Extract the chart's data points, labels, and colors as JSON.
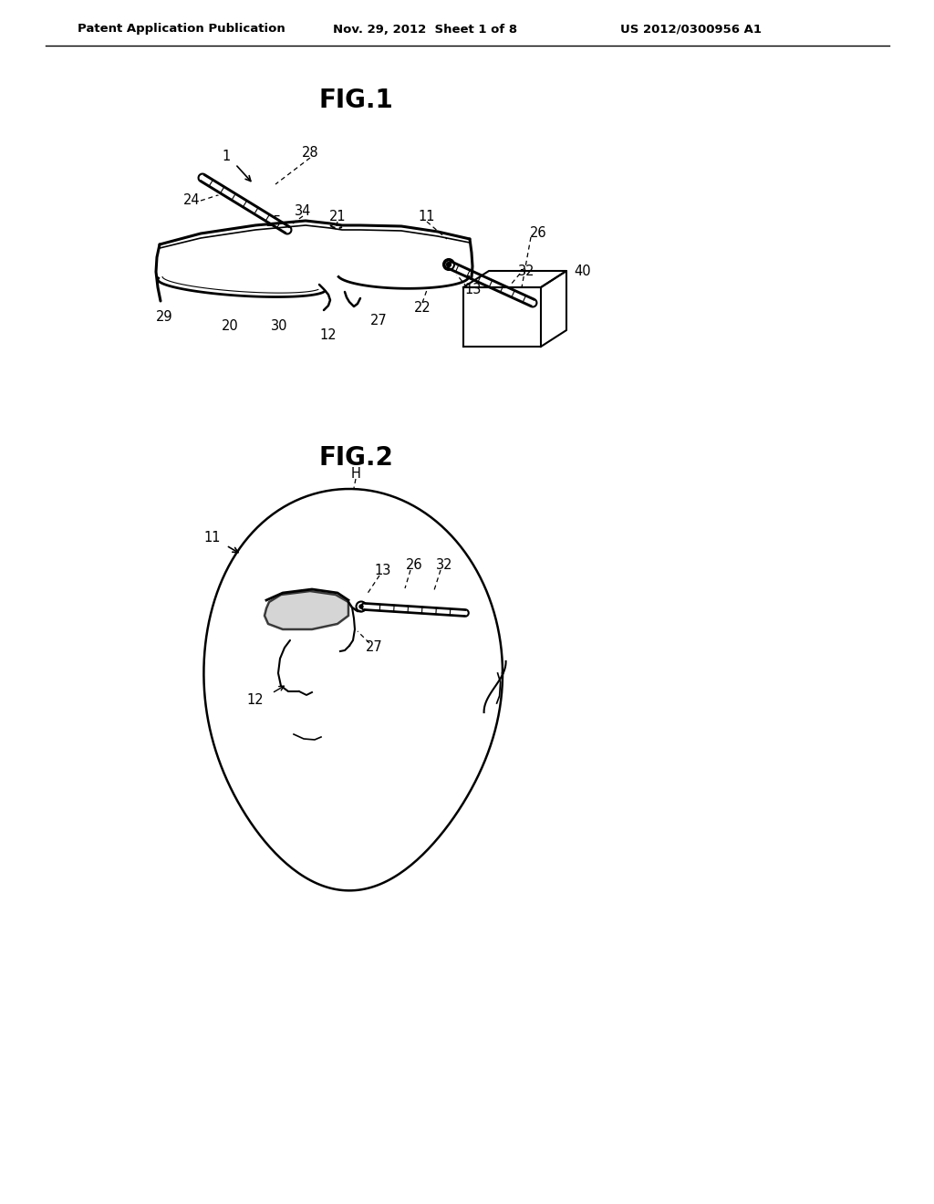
{
  "background_color": "#ffffff",
  "header_left": "Patent Application Publication",
  "header_center": "Nov. 29, 2012  Sheet 1 of 8",
  "header_right": "US 2012/0300956 A1",
  "fig1_label": "FIG.1",
  "fig2_label": "FIG.2",
  "line_color": "#000000",
  "text_color": "#000000"
}
